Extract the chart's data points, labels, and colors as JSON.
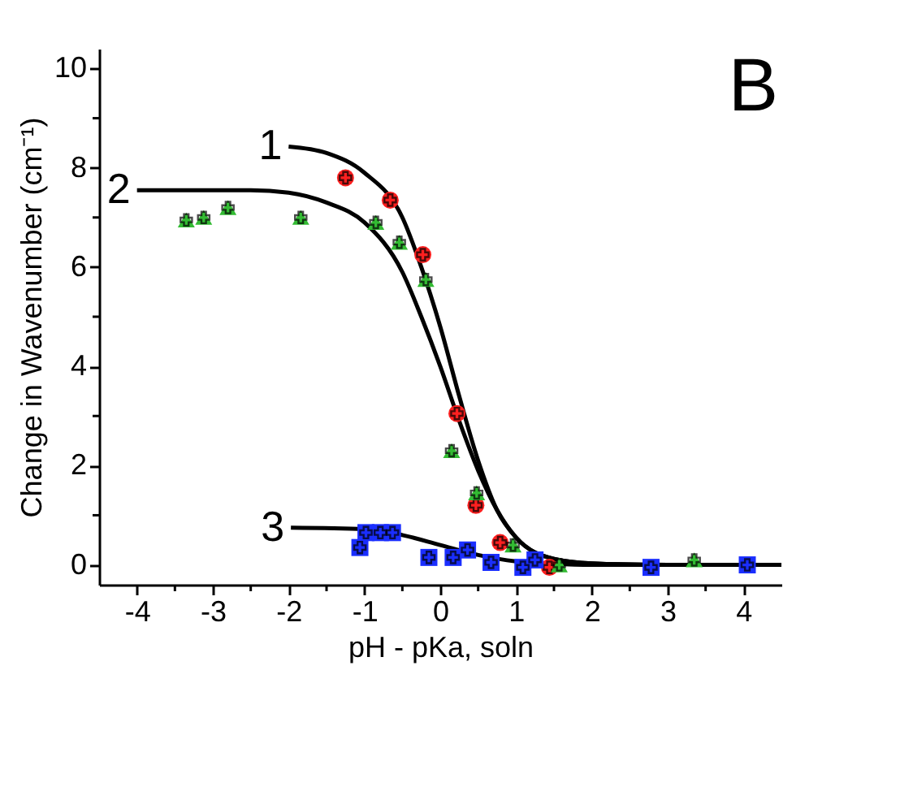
{
  "chart_data": {
    "type": "scatter",
    "xlabel": "pH - pKa, soln",
    "ylabel": "Change in Wavenumber (cm⁻¹)",
    "xlim": [
      -4.5,
      4.5
    ],
    "ylim": [
      -0.4,
      10.4
    ],
    "xticks": [
      -4,
      {
        "value": -3.5,
        "label": null
      },
      -3,
      {
        "value": -2.5,
        "label": null
      },
      -2,
      {
        "value": -1.5,
        "label": null
      },
      -1,
      {
        "value": -0.5,
        "label": null
      },
      0,
      {
        "value": 0.5,
        "label": null
      },
      1,
      {
        "value": 1.5,
        "label": null
      },
      2,
      {
        "value": 2.5,
        "label": null
      },
      3,
      {
        "value": 3.5,
        "label": null
      },
      4
    ],
    "yticks": [
      0,
      {
        "value": 1,
        "label": null
      },
      2,
      {
        "value": 3,
        "label": null
      },
      4,
      {
        "value": 5,
        "label": null
      },
      6,
      {
        "value": 7,
        "label": null
      },
      8,
      {
        "value": 9,
        "label": null
      },
      10
    ],
    "grid": false,
    "series": [
      {
        "type": "line",
        "color": "#000000",
        "marker": "none",
        "x": [
          -2.0,
          -1.5,
          -1.0,
          -0.5,
          -0.25,
          0,
          0.25,
          0.5,
          0.75,
          1.0,
          1.5,
          2.0,
          3.0,
          4.5
        ],
        "values": [
          8.43,
          8.3,
          7.9,
          7.0,
          6.0,
          4.8,
          3.4,
          2.1,
          1.1,
          0.55,
          0.12,
          0.03,
          0,
          0
        ]
      },
      {
        "type": "line",
        "color": "#000000",
        "marker": "none",
        "x": [
          -4.0,
          -2.5,
          -2.0,
          -1.5,
          -1.0,
          -0.5,
          -0.25,
          0,
          0.25,
          0.5,
          0.75,
          1.0,
          1.5,
          2.0,
          3.0,
          4.5
        ],
        "values": [
          7.55,
          7.55,
          7.5,
          7.3,
          6.9,
          5.9,
          5.0,
          4.0,
          2.9,
          1.9,
          1.1,
          0.55,
          0.12,
          0.03,
          0,
          0
        ]
      },
      {
        "type": "line",
        "color": "#000000",
        "marker": "none",
        "x": [
          -1.97,
          -1.0,
          -0.5,
          0,
          0.5,
          1.0,
          1.5,
          2.0,
          4.5
        ],
        "values": [
          0.75,
          0.72,
          0.6,
          0.4,
          0.2,
          0.07,
          0.02,
          0,
          0
        ]
      },
      {
        "color": "#ff2020",
        "marker": "circle",
        "x": [
          -1.25,
          -0.66,
          -0.23,
          0.22,
          0.47,
          0.79,
          1.44
        ],
        "values": [
          7.8,
          7.35,
          6.25,
          3.05,
          1.2,
          0.45,
          -0.05
        ]
      },
      {
        "color": "#33bb33",
        "marker": "triangle",
        "x": [
          -3.35,
          -3.12,
          -2.8,
          -1.84,
          -0.85,
          -0.54,
          -0.19,
          0.15,
          0.48,
          0.96,
          1.57,
          3.35
        ],
        "values": [
          6.95,
          7.0,
          7.2,
          7.0,
          6.9,
          6.5,
          5.75,
          2.3,
          1.45,
          0.4,
          0.0,
          0.1
        ]
      },
      {
        "color": "#1a2eff",
        "marker": "square",
        "x": [
          -1.06,
          -0.98,
          -0.79,
          -0.63,
          -0.15,
          0.17,
          0.36,
          0.67,
          1.09,
          1.25,
          2.78,
          4.05
        ],
        "values": [
          0.35,
          0.65,
          0.65,
          0.65,
          0.15,
          0.15,
          0.3,
          0.05,
          -0.05,
          0.1,
          -0.05,
          0.0
        ]
      }
    ],
    "annotations": [
      {
        "text": "1",
        "x": -2.0,
        "y": 8.43
      },
      {
        "text": "2",
        "x": -4.0,
        "y": 7.55
      },
      {
        "text": "3",
        "x": -1.97,
        "y": 0.75
      },
      "B"
    ]
  }
}
